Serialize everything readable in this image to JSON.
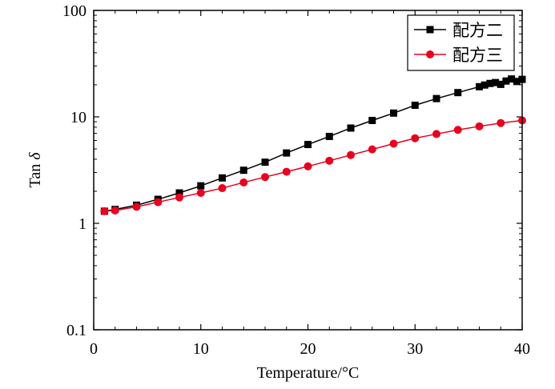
{
  "chart_data": {
    "type": "line",
    "xlabel": "Temperature/°C",
    "ylabel_prefix": "Tan ",
    "ylabel_symbol": "δ",
    "x_scale": "linear",
    "y_scale": "log",
    "xlim": [
      0,
      40
    ],
    "ylim": [
      0.1,
      100
    ],
    "x_ticks": [
      0,
      10,
      20,
      30,
      40
    ],
    "x_tick_labels": [
      "0",
      "10",
      "20",
      "30",
      "40"
    ],
    "y_ticks": [
      0.1,
      1,
      10,
      100
    ],
    "y_tick_labels": [
      "0.1",
      "1",
      "10",
      "100"
    ],
    "grid": false,
    "legend_position": "top-right",
    "series": [
      {
        "name": "配方二",
        "color": "#000000",
        "marker": "square",
        "x": [
          1,
          2,
          4,
          6,
          8,
          10,
          12,
          14,
          16,
          18,
          20,
          22,
          24,
          26,
          28,
          30,
          32,
          34,
          36,
          36.5,
          37,
          37.5,
          38,
          38.5,
          39,
          39.5,
          40
        ],
        "y": [
          1.3,
          1.35,
          1.48,
          1.68,
          1.93,
          2.25,
          2.67,
          3.15,
          3.75,
          4.58,
          5.5,
          6.55,
          7.85,
          9.25,
          10.85,
          12.85,
          14.85,
          16.9,
          19.2,
          19.9,
          20.6,
          21,
          20.2,
          21.7,
          22.7,
          21.5,
          22.5
        ]
      },
      {
        "name": "配方三",
        "color": "#e8001e",
        "marker": "circle",
        "x": [
          1,
          2,
          4,
          6,
          8,
          10,
          12,
          14,
          16,
          18,
          20,
          22,
          24,
          26,
          28,
          30,
          32,
          34,
          36,
          38,
          40
        ],
        "y": [
          1.3,
          1.32,
          1.43,
          1.58,
          1.75,
          1.93,
          2.14,
          2.42,
          2.72,
          3.05,
          3.43,
          3.87,
          4.38,
          4.95,
          5.6,
          6.3,
          6.9,
          7.55,
          8.15,
          8.75,
          9.25
        ]
      }
    ]
  }
}
